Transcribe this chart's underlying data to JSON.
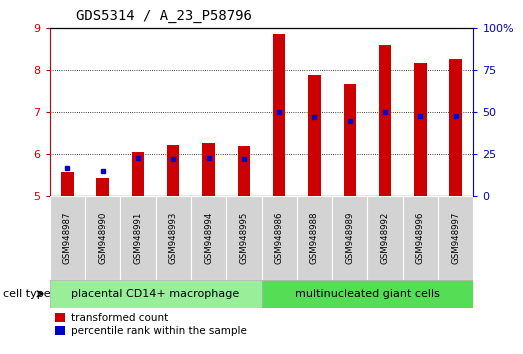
{
  "title": "GDS5314 / A_23_P58796",
  "samples": [
    "GSM948987",
    "GSM948990",
    "GSM948991",
    "GSM948993",
    "GSM948994",
    "GSM948995",
    "GSM948986",
    "GSM948988",
    "GSM948989",
    "GSM948992",
    "GSM948996",
    "GSM948997"
  ],
  "transformed_count": [
    5.58,
    5.45,
    6.05,
    6.22,
    6.28,
    6.2,
    8.87,
    7.88,
    7.68,
    8.6,
    8.18,
    8.28
  ],
  "percentile_rank": [
    17,
    15,
    23,
    22,
    23,
    22,
    50,
    47,
    45,
    50,
    48,
    48
  ],
  "groups": [
    {
      "label": "placental CD14+ macrophage",
      "start": 0,
      "end": 6,
      "color": "#66ee66"
    },
    {
      "label": "multinucleated giant cells",
      "start": 6,
      "end": 12,
      "color": "#44dd44"
    }
  ],
  "ylim_left": [
    5,
    9
  ],
  "ylim_right": [
    0,
    100
  ],
  "bar_color": "#cc0000",
  "dot_color": "#0000cc",
  "left_tick_color": "#cc0000",
  "right_tick_color": "#0000cc",
  "yticks_left": [
    5,
    6,
    7,
    8,
    9
  ],
  "yticks_right": [
    0,
    25,
    50,
    75,
    100
  ],
  "ytick_labels_right": [
    "0",
    "25",
    "50",
    "75",
    "100%"
  ],
  "cell_type_label": "cell type",
  "legend": [
    "transformed count",
    "percentile rank within the sample"
  ],
  "bar_width": 0.35,
  "bg_color": "#ffffff",
  "label_box_color": "#d3d3d3",
  "group1_color": "#99ee99",
  "group2_color": "#55dd55"
}
